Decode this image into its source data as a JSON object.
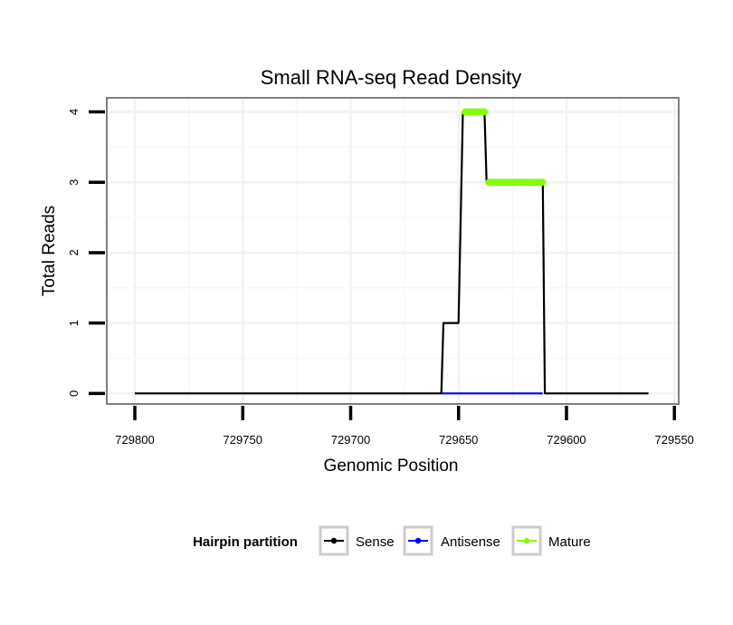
{
  "chart_data": {
    "type": "line",
    "title": "Small RNA-seq Read Density",
    "xlabel": "Genomic Position",
    "ylabel": "Total Reads",
    "x_reversed": true,
    "xlim": [
      729813,
      729548
    ],
    "ylim": [
      -0.15,
      4.2
    ],
    "xticks": [
      729800,
      729750,
      729700,
      729650,
      729600,
      729550
    ],
    "xtick_labels": [
      "729800",
      "729750",
      "729700",
      "729650",
      "729600",
      "729550"
    ],
    "yticks": [
      0,
      1,
      2,
      3,
      4
    ],
    "ytick_labels": [
      "0",
      "1",
      "2",
      "3",
      "4"
    ],
    "grid": true,
    "series": [
      {
        "name": "Sense",
        "color": "#000000",
        "points": [
          [
            729800,
            0
          ],
          [
            729658,
            0
          ],
          [
            729657,
            1
          ],
          [
            729650,
            1
          ],
          [
            729648,
            4
          ],
          [
            729638,
            4
          ],
          [
            729637,
            3
          ],
          [
            729611,
            3
          ],
          [
            729610,
            0
          ],
          [
            729562,
            0
          ]
        ]
      },
      {
        "name": "Antisense",
        "color": "#0000ff",
        "points": [
          [
            729658,
            0
          ],
          [
            729611,
            0
          ]
        ]
      },
      {
        "name": "Mature",
        "color": "#7fff00",
        "segments": [
          [
            [
              729647,
              4
            ],
            [
              729638,
              4
            ]
          ],
          [
            [
              729636,
              3
            ],
            [
              729611,
              3
            ]
          ]
        ]
      }
    ],
    "legend": {
      "title": "Hairpin partition",
      "position": "bottom",
      "items": [
        {
          "label": "Sense",
          "color": "#000000"
        },
        {
          "label": "Antisense",
          "color": "#0000ff"
        },
        {
          "label": "Mature",
          "color": "#7fff00"
        }
      ]
    }
  }
}
